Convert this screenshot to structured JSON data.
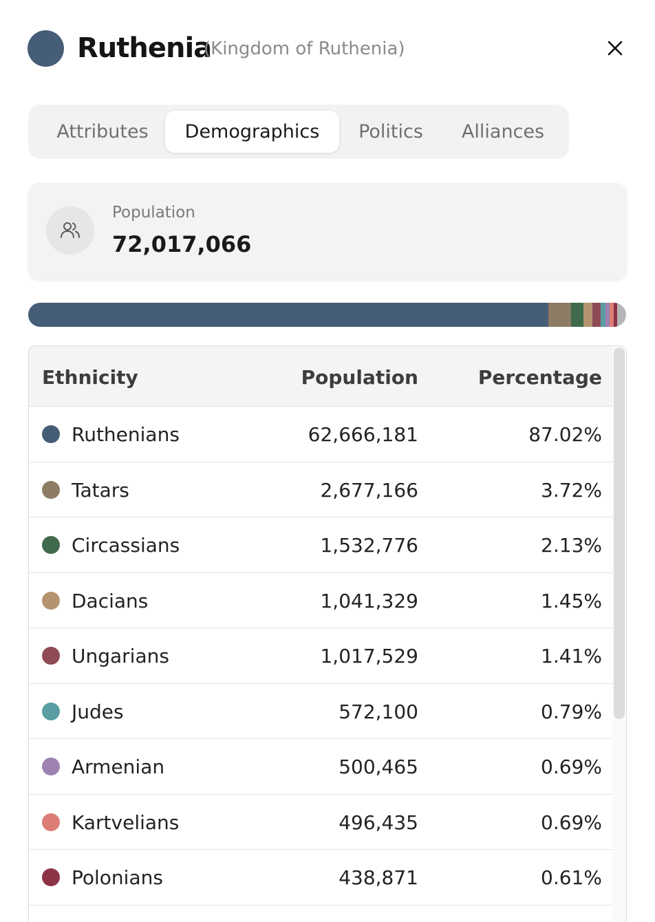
{
  "header": {
    "name": "Ruthenia",
    "full_name": "(Kingdom of Ruthenia)",
    "flag_color": "#455d76",
    "close_icon": "close-icon"
  },
  "tabs": [
    {
      "label": "Attributes",
      "active": false
    },
    {
      "label": "Demographics",
      "active": true
    },
    {
      "label": "Politics",
      "active": false
    },
    {
      "label": "Alliances",
      "active": false
    }
  ],
  "population": {
    "label": "Population",
    "value": "72,017,066",
    "icon": "people-icon"
  },
  "bar": {
    "remainder_color": "#b5b5b5"
  },
  "table": {
    "headers": {
      "ethnicity": "Ethnicity",
      "population": "Population",
      "percentage": "Percentage"
    },
    "rows": [
      {
        "name": "Ruthenians",
        "population": "62,666,181",
        "percentage": "87.02%",
        "share": 87.02,
        "color": "#455d76"
      },
      {
        "name": "Tatars",
        "population": "2,677,166",
        "percentage": "3.72%",
        "share": 3.72,
        "color": "#8c7c63"
      },
      {
        "name": "Circassians",
        "population": "1,532,776",
        "percentage": "2.13%",
        "share": 2.13,
        "color": "#3f6a4b"
      },
      {
        "name": "Dacians",
        "population": "1,041,329",
        "percentage": "1.45%",
        "share": 1.45,
        "color": "#b4936e"
      },
      {
        "name": "Ungarians",
        "population": "1,017,529",
        "percentage": "1.41%",
        "share": 1.41,
        "color": "#8e4b55"
      },
      {
        "name": "Judes",
        "population": "572,100",
        "percentage": "0.79%",
        "share": 0.79,
        "color": "#5a9ea3"
      },
      {
        "name": "Armenian",
        "population": "500,465",
        "percentage": "0.69%",
        "share": 0.69,
        "color": "#9d82b2"
      },
      {
        "name": "Kartvelians",
        "population": "496,435",
        "percentage": "0.69%",
        "share": 0.69,
        "color": "#dc7d78"
      },
      {
        "name": "Polonians",
        "population": "438,871",
        "percentage": "0.61%",
        "share": 0.61,
        "color": "#8c3446"
      }
    ]
  }
}
